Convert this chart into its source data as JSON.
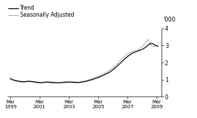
{
  "ylabel_right": "'000",
  "ylim": [
    0,
    4
  ],
  "yticks": [
    0,
    1,
    2,
    3,
    4
  ],
  "xlim_start": 1999.0,
  "xlim_end": 2009.5,
  "xtick_years": [
    1999,
    2001,
    2003,
    2005,
    2007,
    2009
  ],
  "trend_color": "#000000",
  "sa_color": "#aaaaaa",
  "legend_entries": [
    "Trend",
    "Seasonally Adjusted"
  ],
  "background_color": "#ffffff",
  "trend_data": [
    [
      1999.17,
      1.05
    ],
    [
      1999.25,
      1.02
    ],
    [
      1999.42,
      0.97
    ],
    [
      1999.58,
      0.93
    ],
    [
      1999.75,
      0.91
    ],
    [
      1999.92,
      0.89
    ],
    [
      2000.08,
      0.88
    ],
    [
      2000.25,
      0.88
    ],
    [
      2000.42,
      0.9
    ],
    [
      2000.58,
      0.9
    ],
    [
      2000.75,
      0.88
    ],
    [
      2000.92,
      0.86
    ],
    [
      2001.08,
      0.84
    ],
    [
      2001.25,
      0.83
    ],
    [
      2001.42,
      0.83
    ],
    [
      2001.58,
      0.85
    ],
    [
      2001.75,
      0.86
    ],
    [
      2001.92,
      0.85
    ],
    [
      2002.08,
      0.84
    ],
    [
      2002.25,
      0.83
    ],
    [
      2002.42,
      0.82
    ],
    [
      2002.58,
      0.82
    ],
    [
      2002.75,
      0.83
    ],
    [
      2002.92,
      0.84
    ],
    [
      2003.08,
      0.85
    ],
    [
      2003.25,
      0.86
    ],
    [
      2003.42,
      0.86
    ],
    [
      2003.58,
      0.85
    ],
    [
      2003.75,
      0.84
    ],
    [
      2003.92,
      0.84
    ],
    [
      2004.08,
      0.86
    ],
    [
      2004.25,
      0.88
    ],
    [
      2004.42,
      0.92
    ],
    [
      2004.58,
      0.96
    ],
    [
      2004.75,
      1.0
    ],
    [
      2004.92,
      1.05
    ],
    [
      2005.08,
      1.1
    ],
    [
      2005.25,
      1.15
    ],
    [
      2005.42,
      1.22
    ],
    [
      2005.58,
      1.28
    ],
    [
      2005.75,
      1.35
    ],
    [
      2005.92,
      1.42
    ],
    [
      2006.08,
      1.52
    ],
    [
      2006.25,
      1.63
    ],
    [
      2006.42,
      1.75
    ],
    [
      2006.58,
      1.88
    ],
    [
      2006.75,
      2.02
    ],
    [
      2006.92,
      2.16
    ],
    [
      2007.08,
      2.28
    ],
    [
      2007.25,
      2.4
    ],
    [
      2007.42,
      2.5
    ],
    [
      2007.58,
      2.58
    ],
    [
      2007.75,
      2.63
    ],
    [
      2007.92,
      2.68
    ],
    [
      2008.08,
      2.74
    ],
    [
      2008.25,
      2.8
    ],
    [
      2008.42,
      2.9
    ],
    [
      2008.58,
      3.02
    ],
    [
      2008.75,
      3.12
    ],
    [
      2008.92,
      3.1
    ],
    [
      2009.08,
      3.0
    ],
    [
      2009.25,
      2.95
    ]
  ],
  "sa_data": [
    [
      1999.17,
      1.12
    ],
    [
      1999.25,
      1.03
    ],
    [
      1999.42,
      0.94
    ],
    [
      1999.58,
      0.96
    ],
    [
      1999.75,
      0.87
    ],
    [
      1999.92,
      0.85
    ],
    [
      2000.08,
      0.84
    ],
    [
      2000.25,
      0.91
    ],
    [
      2000.42,
      0.93
    ],
    [
      2000.58,
      0.87
    ],
    [
      2000.75,
      0.84
    ],
    [
      2000.92,
      0.8
    ],
    [
      2001.08,
      0.79
    ],
    [
      2001.25,
      0.82
    ],
    [
      2001.42,
      0.85
    ],
    [
      2001.58,
      0.89
    ],
    [
      2001.75,
      0.83
    ],
    [
      2001.92,
      0.8
    ],
    [
      2002.08,
      0.78
    ],
    [
      2002.25,
      0.81
    ],
    [
      2002.42,
      0.79
    ],
    [
      2002.58,
      0.81
    ],
    [
      2002.75,
      0.87
    ],
    [
      2002.92,
      0.89
    ],
    [
      2003.08,
      0.91
    ],
    [
      2003.25,
      0.83
    ],
    [
      2003.42,
      0.8
    ],
    [
      2003.58,
      0.82
    ],
    [
      2003.75,
      0.8
    ],
    [
      2003.92,
      0.87
    ],
    [
      2004.08,
      0.91
    ],
    [
      2004.25,
      0.94
    ],
    [
      2004.42,
      0.97
    ],
    [
      2004.58,
      1.01
    ],
    [
      2004.75,
      1.07
    ],
    [
      2004.92,
      1.11
    ],
    [
      2005.08,
      1.17
    ],
    [
      2005.25,
      1.21
    ],
    [
      2005.42,
      1.29
    ],
    [
      2005.58,
      1.37
    ],
    [
      2005.75,
      1.44
    ],
    [
      2005.92,
      1.54
    ],
    [
      2006.08,
      1.64
    ],
    [
      2006.25,
      1.74
    ],
    [
      2006.42,
      1.89
    ],
    [
      2006.58,
      2.04
    ],
    [
      2006.75,
      2.19
    ],
    [
      2006.92,
      2.31
    ],
    [
      2007.08,
      2.44
    ],
    [
      2007.25,
      2.54
    ],
    [
      2007.42,
      2.61
    ],
    [
      2007.58,
      2.67
    ],
    [
      2007.75,
      2.71
    ],
    [
      2007.92,
      2.77
    ],
    [
      2008.08,
      2.87
    ],
    [
      2008.25,
      2.97
    ],
    [
      2008.42,
      3.18
    ],
    [
      2008.58,
      3.35
    ],
    [
      2008.75,
      3.05
    ],
    [
      2008.92,
      2.92
    ],
    [
      2009.08,
      2.98
    ],
    [
      2009.25,
      3.02
    ]
  ]
}
